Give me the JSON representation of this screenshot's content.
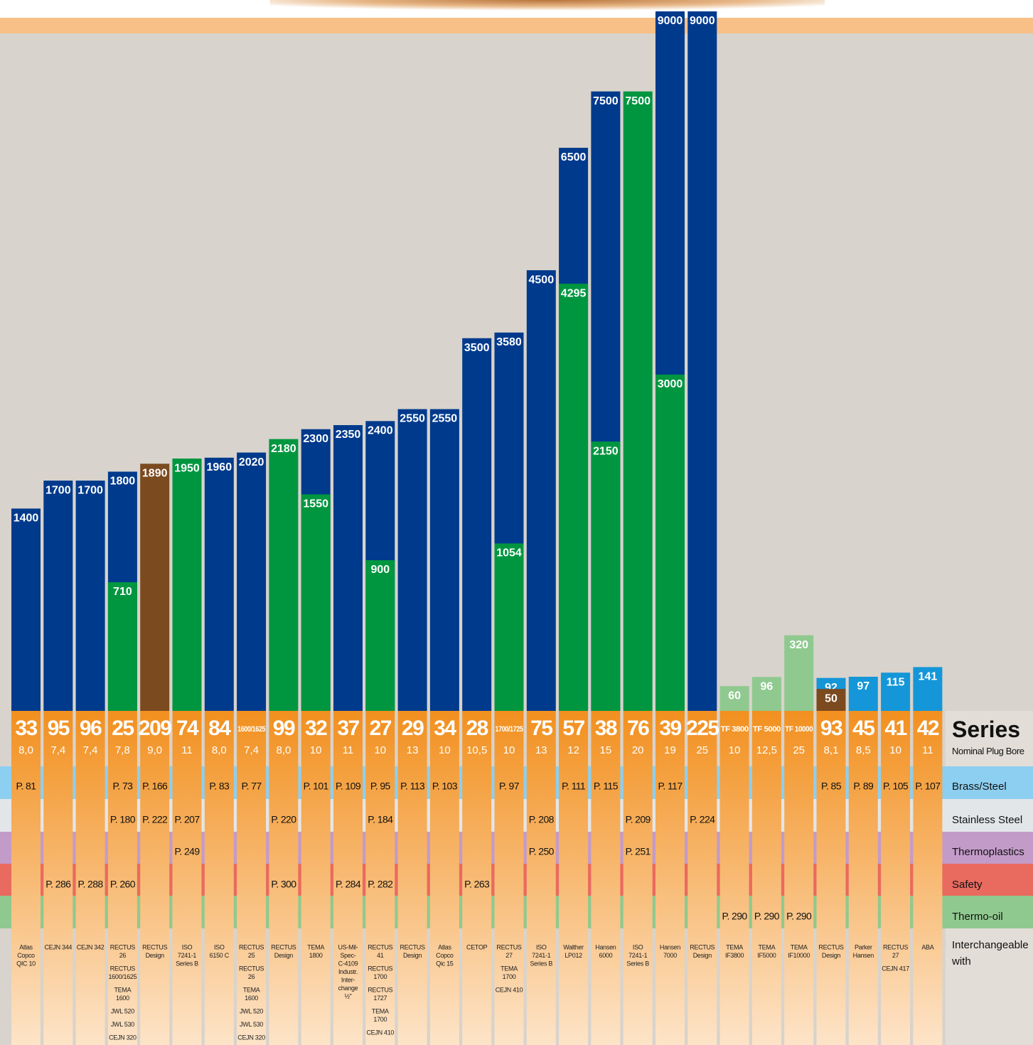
{
  "chart_data": {
    "type": "bar",
    "rows": [
      {
        "label": "Series",
        "color": null
      },
      {
        "label": "Nominal Plug Bore",
        "color": null
      },
      {
        "label": "Brass/Steel",
        "color": "#8dcff0"
      },
      {
        "label": "Stainless Steel",
        "color": "#e3e6e9"
      },
      {
        "label": "Thermoplastics",
        "color": "#c39bc9"
      },
      {
        "label": "Safety",
        "color": "#e96a5f"
      },
      {
        "label": "Thermo-oil",
        "color": "#90c98f"
      },
      {
        "label": "Interchangeable with",
        "color": null
      }
    ],
    "columns": [
      {
        "series": "33",
        "bore": "8,0",
        "bars": [
          {
            "value": 1400,
            "color": "#003a8c"
          }
        ],
        "pages": [
          "P. 81",
          null,
          null,
          null,
          null
        ],
        "interchange": [
          [
            "Atlas",
            "Copco",
            "QIC 10"
          ]
        ]
      },
      {
        "series": "95",
        "bore": "7,4",
        "bars": [
          {
            "value": 1700,
            "color": "#003a8c"
          }
        ],
        "pages": [
          null,
          null,
          null,
          "P. 286",
          null
        ],
        "interchange": [
          [
            "CEJN 344"
          ]
        ]
      },
      {
        "series": "96",
        "bore": "7,4",
        "bars": [
          {
            "value": 1700,
            "color": "#003a8c"
          }
        ],
        "pages": [
          null,
          null,
          null,
          "P. 288",
          null
        ],
        "interchange": [
          [
            "CEJN 342"
          ]
        ]
      },
      {
        "series": "25",
        "bore": "7,8",
        "bars": [
          {
            "value": 1800,
            "color": "#003a8c"
          },
          {
            "value": 710,
            "color": "#009640"
          }
        ],
        "pages": [
          "P. 73",
          "P. 180",
          null,
          "P. 260",
          null
        ],
        "interchange": [
          [
            "RECTUS",
            "26"
          ],
          [
            "RECTUS",
            "1600/1625"
          ],
          [
            "TEMA",
            "1600"
          ],
          [
            "JWL 520"
          ],
          [
            "JWL 530"
          ],
          [
            "CEJN 320"
          ]
        ]
      },
      {
        "series": "209",
        "bore": "9,0",
        "bars": [
          {
            "value": 1890,
            "color": "#7b4a1f"
          }
        ],
        "pages": [
          "P. 166",
          "P. 222",
          null,
          null,
          null
        ],
        "interchange": [
          [
            "RECTUS",
            "Design"
          ]
        ]
      },
      {
        "series": "74",
        "bore": "11",
        "bars": [
          {
            "value": 1950,
            "color": "#009640"
          }
        ],
        "pages": [
          null,
          "P. 207",
          "P. 249",
          null,
          null
        ],
        "interchange": [
          [
            "ISO",
            "7241-1",
            "Series B"
          ]
        ]
      },
      {
        "series": "84",
        "bore": "8,0",
        "bars": [
          {
            "value": 1960,
            "color": "#003a8c"
          }
        ],
        "pages": [
          "P. 83",
          null,
          null,
          null,
          null
        ],
        "interchange": [
          [
            "ISO",
            "6150 C"
          ]
        ]
      },
      {
        "series": "1600/1625",
        "bore": "7,4",
        "bars": [
          {
            "value": 2020,
            "color": "#003a8c"
          }
        ],
        "pages": [
          "P. 77",
          null,
          null,
          null,
          null
        ],
        "interchange": [
          [
            "RECTUS",
            "25"
          ],
          [
            "RECTUS",
            "26"
          ],
          [
            "TEMA",
            "1600"
          ],
          [
            "JWL 520"
          ],
          [
            "JWL 530"
          ],
          [
            "CEJN 320"
          ]
        ]
      },
      {
        "series": "99",
        "bore": "8,0",
        "bars": [
          {
            "value": 2180,
            "color": "#009640"
          }
        ],
        "pages": [
          null,
          "P. 220",
          null,
          "P. 300",
          null
        ],
        "interchange": [
          [
            "RECTUS",
            "Design"
          ]
        ]
      },
      {
        "series": "32",
        "bore": "10",
        "bars": [
          {
            "value": 2300,
            "color": "#003a8c"
          },
          {
            "value": 1550,
            "color": "#009640"
          }
        ],
        "pages": [
          "P. 101",
          null,
          null,
          null,
          null
        ],
        "interchange": [
          [
            "TEMA",
            "1800"
          ]
        ]
      },
      {
        "series": "37",
        "bore": "11",
        "bars": [
          {
            "value": 2350,
            "color": "#003a8c"
          }
        ],
        "pages": [
          "P. 109",
          null,
          null,
          "P. 284",
          null
        ],
        "interchange": [
          [
            "US-Mil-",
            "Spec-",
            "C-4109",
            "Industr.",
            "Inter-",
            "change",
            "½\""
          ]
        ]
      },
      {
        "series": "27",
        "bore": "10",
        "bars": [
          {
            "value": 2400,
            "color": "#003a8c"
          },
          {
            "value": 900,
            "color": "#009640"
          }
        ],
        "pages": [
          "P. 95",
          "P. 184",
          null,
          "P. 282",
          null
        ],
        "interchange": [
          [
            "RECTUS",
            "41"
          ],
          [
            "RECTUS",
            "1700"
          ],
          [
            "RECTUS",
            "1727"
          ],
          [
            "TEMA",
            "1700"
          ],
          [
            "CEJN 410"
          ]
        ]
      },
      {
        "series": "29",
        "bore": "13",
        "bars": [
          {
            "value": 2550,
            "color": "#003a8c"
          }
        ],
        "pages": [
          "P. 113",
          null,
          null,
          null,
          null
        ],
        "interchange": [
          [
            "RECTUS",
            "Design"
          ]
        ]
      },
      {
        "series": "34",
        "bore": "10",
        "bars": [
          {
            "value": 2550,
            "color": "#003a8c"
          }
        ],
        "pages": [
          "P. 103",
          null,
          null,
          null,
          null
        ],
        "interchange": [
          [
            "Atlas",
            "Copco",
            "Qic 15"
          ]
        ]
      },
      {
        "series": "28",
        "bore": "10,5",
        "bars": [
          {
            "value": 3500,
            "color": "#003a8c"
          }
        ],
        "pages": [
          null,
          null,
          null,
          "P. 263",
          null
        ],
        "interchange": [
          [
            "CETOP"
          ]
        ]
      },
      {
        "series": "1700/1725",
        "bore": "10",
        "bars": [
          {
            "value": 3580,
            "color": "#003a8c"
          },
          {
            "value": 1054,
            "color": "#009640"
          }
        ],
        "pages": [
          "P. 97",
          null,
          null,
          null,
          null
        ],
        "interchange": [
          [
            "RECTUS",
            "27"
          ],
          [
            "TEMA",
            "1700"
          ],
          [
            "CEJN 410"
          ]
        ]
      },
      {
        "series": "75",
        "bore": "13",
        "bars": [
          {
            "value": 4500,
            "color": "#003a8c"
          }
        ],
        "pages": [
          null,
          "P. 208",
          "P. 250",
          null,
          null
        ],
        "interchange": [
          [
            "ISO",
            "7241-1",
            "Series B"
          ]
        ]
      },
      {
        "series": "57",
        "bore": "12",
        "bars": [
          {
            "value": 6500,
            "color": "#003a8c"
          },
          {
            "value": 4295,
            "color": "#009640"
          }
        ],
        "pages": [
          "P. 111",
          null,
          null,
          null,
          null
        ],
        "interchange": [
          [
            "Walther",
            "LP012"
          ]
        ]
      },
      {
        "series": "38",
        "bore": "15",
        "bars": [
          {
            "value": 7500,
            "color": "#003a8c"
          },
          {
            "value": 2150,
            "color": "#009640"
          }
        ],
        "pages": [
          "P. 115",
          null,
          null,
          null,
          null
        ],
        "interchange": [
          [
            "Hansen",
            "6000"
          ]
        ]
      },
      {
        "series": "76",
        "bore": "20",
        "bars": [
          {
            "value": 7500,
            "color": "#009640"
          }
        ],
        "pages": [
          null,
          "P. 209",
          "P. 251",
          null,
          null
        ],
        "interchange": [
          [
            "ISO",
            "7241-1",
            "Series B"
          ]
        ]
      },
      {
        "series": "39",
        "bore": "19",
        "bars": [
          {
            "value": 9000,
            "color": "#003a8c"
          },
          {
            "value": 3000,
            "color": "#009640"
          }
        ],
        "pages": [
          "P. 117",
          null,
          null,
          null,
          null
        ],
        "interchange": [
          [
            "Hansen",
            "7000"
          ]
        ]
      },
      {
        "series": "225",
        "bore": "25",
        "bars": [
          {
            "value": 9000,
            "color": "#003a8c"
          }
        ],
        "pages": [
          null,
          "P. 224",
          null,
          null,
          null
        ],
        "interchange": [
          [
            "RECTUS",
            "Design"
          ]
        ]
      },
      {
        "series": "TF 3800",
        "bore": "10",
        "bars": [
          {
            "value": 60,
            "color": "#8fc98f"
          }
        ],
        "pages": [
          null,
          null,
          null,
          null,
          "P. 290"
        ],
        "interchange": [
          [
            "TEMA",
            "IF3800"
          ]
        ]
      },
      {
        "series": "TF 5000",
        "bore": "12,5",
        "bars": [
          {
            "value": 96,
            "color": "#8fc98f"
          }
        ],
        "pages": [
          null,
          null,
          null,
          null,
          "P. 290"
        ],
        "interchange": [
          [
            "TEMA",
            "IF5000"
          ]
        ]
      },
      {
        "series": "TF 10000",
        "bore": "25",
        "bars": [
          {
            "value": 320,
            "color": "#8fc98f"
          }
        ],
        "pages": [
          null,
          null,
          null,
          null,
          "P. 290"
        ],
        "interchange": [
          [
            "TEMA",
            "IF10000"
          ]
        ]
      },
      {
        "series": "93",
        "bore": "8,1",
        "bars": [
          {
            "value": 92,
            "color": "#1496d8"
          },
          {
            "value": 50,
            "color": "#7b4a1f"
          }
        ],
        "pages": [
          "P. 85",
          null,
          null,
          null,
          null
        ],
        "interchange": [
          [
            "RECTUS",
            "Design"
          ]
        ]
      },
      {
        "series": "45",
        "bore": "8,5",
        "bars": [
          {
            "value": 97,
            "color": "#1496d8"
          }
        ],
        "pages": [
          "P. 89",
          null,
          null,
          null,
          null
        ],
        "interchange": [
          [
            "Parker",
            "Hansen"
          ]
        ]
      },
      {
        "series": "41",
        "bore": "10",
        "bars": [
          {
            "value": 115,
            "color": "#1496d8"
          }
        ],
        "pages": [
          "P. 105",
          null,
          null,
          null,
          null
        ],
        "interchange": [
          [
            "RECTUS",
            "27"
          ],
          [
            "CEJN 417"
          ]
        ]
      },
      {
        "series": "42",
        "bore": "11",
        "bars": [
          {
            "value": 141,
            "color": "#1496d8"
          }
        ],
        "pages": [
          "P. 107",
          null,
          null,
          null,
          null
        ],
        "interchange": [
          [
            "ABA"
          ]
        ]
      }
    ]
  }
}
